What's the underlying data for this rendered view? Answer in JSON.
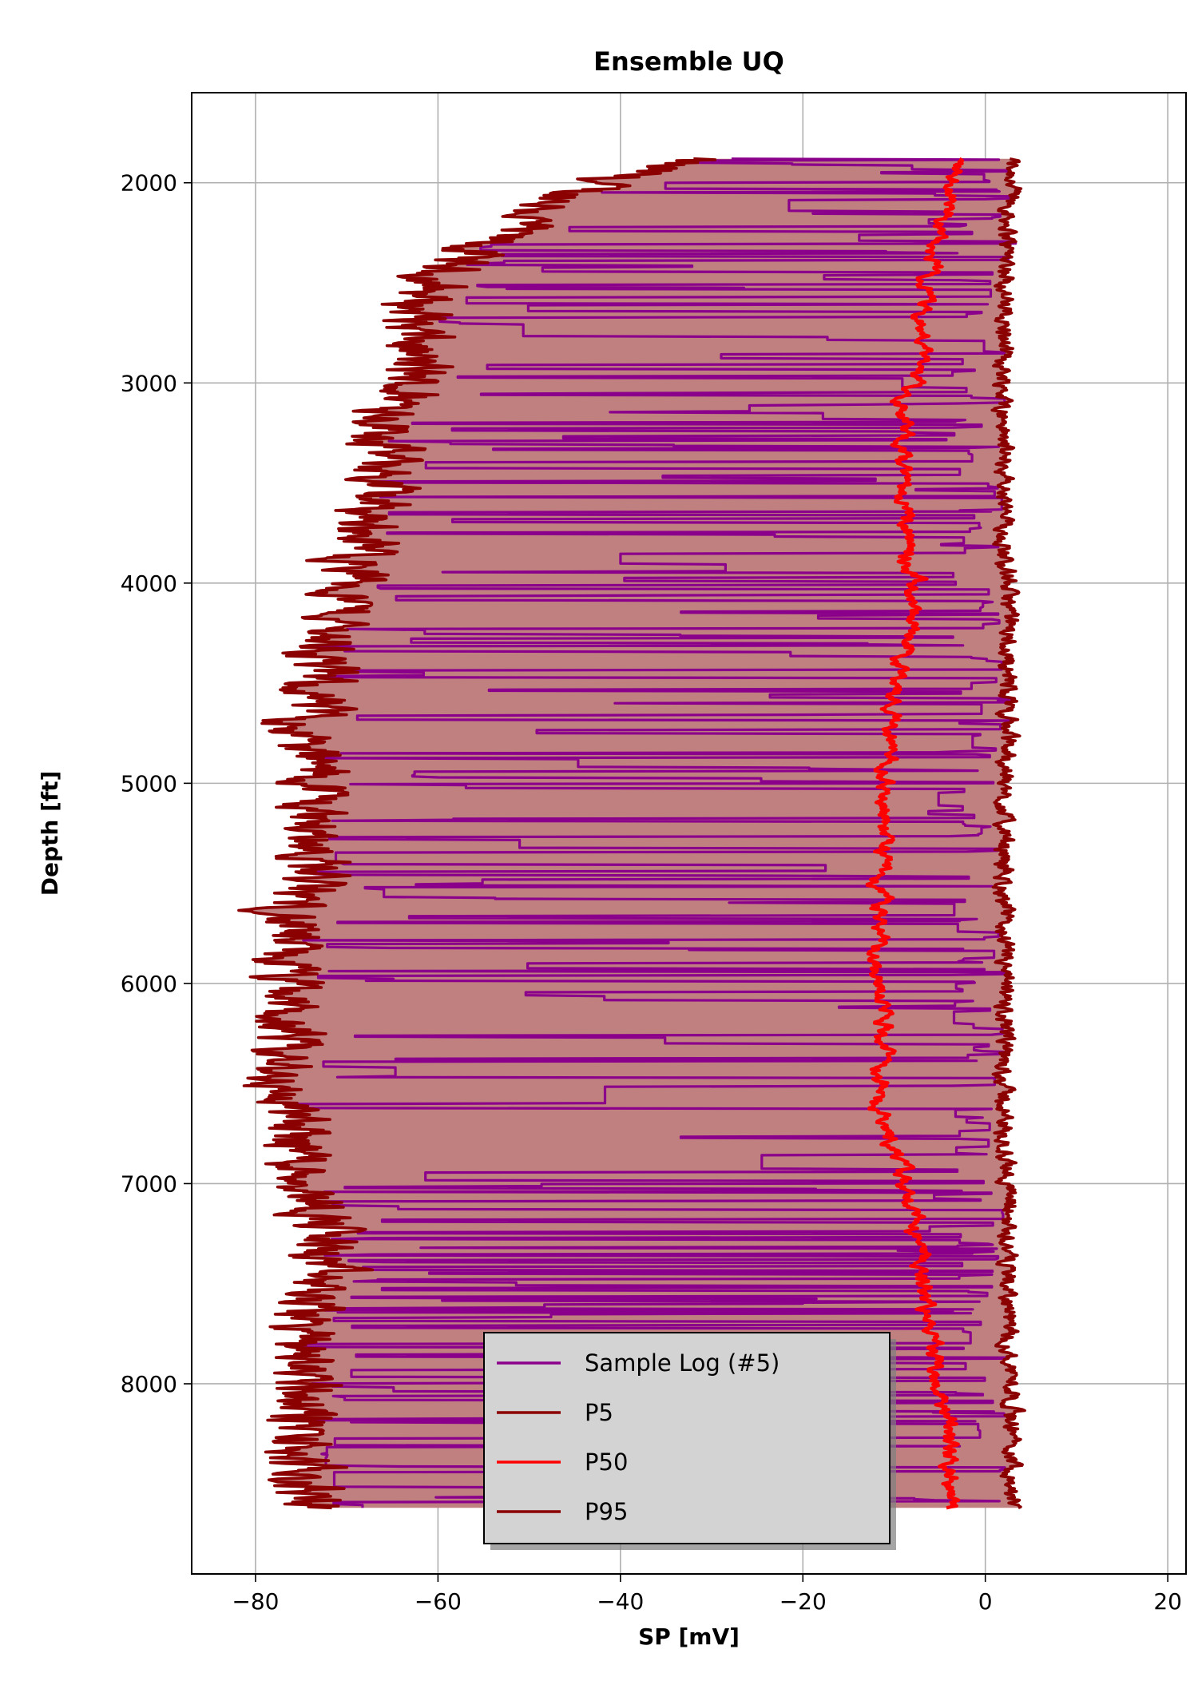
{
  "chart_data": {
    "type": "line",
    "title": "Ensemble UQ",
    "xlabel": "SP [mV]",
    "ylabel": "Depth [ft]",
    "xlim": [
      -87,
      22
    ],
    "ylim": [
      8950,
      1550
    ],
    "y_inverted": true,
    "grid": true,
    "x_ticks": [
      -80,
      -60,
      -40,
      -20,
      0,
      20
    ],
    "y_ticks": [
      2000,
      3000,
      4000,
      5000,
      6000,
      7000,
      8000
    ],
    "x_tick_labels": [
      "−80",
      "−60",
      "−40",
      "−20",
      "0",
      "20"
    ],
    "y_tick_labels": [
      "2000",
      "3000",
      "4000",
      "5000",
      "6000",
      "7000",
      "8000"
    ],
    "legend": {
      "placement": "lower center",
      "entries": [
        "Sample Log (#5)",
        "P5",
        "P50",
        "P95"
      ]
    },
    "depth_range": [
      1880,
      8620
    ],
    "fill_between": {
      "lower": "P5",
      "upper": "P95",
      "color": "#c08080"
    },
    "series": [
      {
        "name": "Sample Log (#5)",
        "color": "#8b008b",
        "style": "noisy, spiking between the P5 and P95 envelopes"
      },
      {
        "name": "P5",
        "color": "#8b0000",
        "depth": [
          1880,
          2000,
          2200,
          2400,
          2600,
          2800,
          3000,
          3200,
          3400,
          3600,
          3800,
          4000,
          4200,
          4400,
          4600,
          4800,
          5000,
          5200,
          5400,
          5600,
          5800,
          6000,
          6200,
          6400,
          6600,
          6800,
          7000,
          7200,
          7400,
          7600,
          7800,
          8000,
          8200,
          8400,
          8620
        ],
        "values": [
          -33,
          -43,
          -51,
          -59,
          -62,
          -63,
          -63,
          -65,
          -66,
          -67,
          -68,
          -69,
          -71,
          -73,
          -74,
          -75,
          -73,
          -74,
          -73,
          -76,
          -77,
          -77,
          -77,
          -78,
          -77,
          -75,
          -74,
          -72,
          -73,
          -74,
          -75,
          -74,
          -75,
          -76,
          -73
        ]
      },
      {
        "name": "P50",
        "color": "#ff0000",
        "depth": [
          1880,
          2000,
          2200,
          2400,
          2600,
          2800,
          3000,
          3200,
          3400,
          3600,
          3800,
          4000,
          4200,
          4400,
          4600,
          4800,
          5000,
          5200,
          5400,
          5600,
          5800,
          6000,
          6200,
          6400,
          6600,
          6800,
          7000,
          7200,
          7400,
          7600,
          7800,
          8000,
          8200,
          8400,
          8620
        ],
        "values": [
          -3,
          -3.5,
          -5,
          -6,
          -6.5,
          -7,
          -8,
          -9,
          -9,
          -8.5,
          -8.5,
          -8,
          -8,
          -9,
          -10,
          -10.5,
          -11,
          -11,
          -11.5,
          -11.5,
          -12,
          -11.5,
          -11,
          -11,
          -12,
          -10,
          -9,
          -8,
          -7,
          -6.5,
          -6,
          -5,
          -4,
          -4,
          -4
        ]
      },
      {
        "name": "P95",
        "color": "#8b0000",
        "depth": [
          1880,
          2000,
          2200,
          2400,
          2600,
          2800,
          3000,
          3200,
          3400,
          3600,
          3800,
          4000,
          4200,
          4400,
          4600,
          4800,
          5000,
          5200,
          5400,
          5600,
          5800,
          6000,
          6200,
          6400,
          6600,
          6800,
          7000,
          7200,
          7400,
          7600,
          7800,
          8000,
          8200,
          8400,
          8620
        ],
        "values": [
          3,
          3,
          2.5,
          2.5,
          2,
          2,
          2,
          2,
          2,
          2,
          2,
          2.5,
          2.5,
          2.5,
          2.5,
          2.5,
          2,
          2,
          2,
          2,
          2,
          2,
          2,
          2,
          2,
          2,
          2.5,
          2.5,
          2.5,
          2.5,
          2.5,
          3,
          3,
          3,
          3
        ]
      }
    ]
  }
}
